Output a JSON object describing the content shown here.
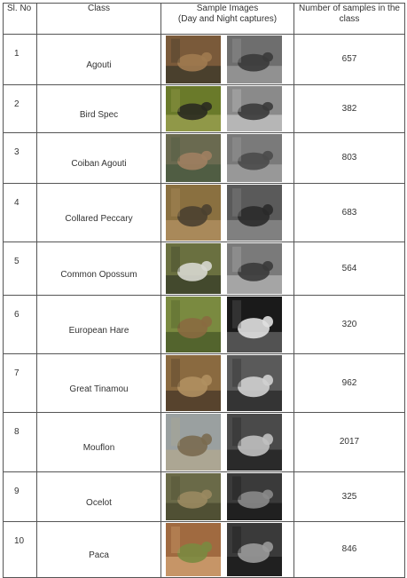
{
  "header": {
    "no": "Sl. No",
    "class": "Class",
    "images_line1": "Sample Images",
    "images_line2": "(Day and Night captures)",
    "count": "Number of samples in the class"
  },
  "rows": [
    {
      "no": "1",
      "class": "Agouti",
      "count": "657",
      "day_icon": "agouti-day-photo",
      "night_icon": "agouti-night-photo",
      "day_colors": [
        "#7a5a3a",
        "#a07a50",
        "#3e3a2a"
      ],
      "night_colors": [
        "#6e6e6e",
        "#3a3a3a",
        "#9a9a9a"
      ]
    },
    {
      "no": "2",
      "class": "Bird Spec",
      "count": "382",
      "day_icon": "bird-day-photo",
      "night_icon": "bird-night-photo",
      "day_colors": [
        "#6a7a2a",
        "#2a2a20",
        "#9aa050"
      ],
      "night_colors": [
        "#8a8a8a",
        "#3a3a3a",
        "#c0c0c0"
      ]
    },
    {
      "no": "3",
      "class": "Coiban Agouti",
      "count": "803",
      "day_icon": "coiban-agouti-day-photo",
      "night_icon": "coiban-agouti-night-photo",
      "day_colors": [
        "#6a6a50",
        "#a08060",
        "#4a5a40"
      ],
      "night_colors": [
        "#7a7a7a",
        "#4a4a4a",
        "#a0a0a0"
      ]
    },
    {
      "no": "4",
      "class": "Collared Peccary",
      "count": "683",
      "day_icon": "collared-peccary-day-photo",
      "night_icon": "collared-peccary-night-photo",
      "day_colors": [
        "#8a7040",
        "#4a4030",
        "#b09060"
      ],
      "night_colors": [
        "#5a5a5a",
        "#2a2a2a",
        "#8a8a8a"
      ]
    },
    {
      "no": "5",
      "class": "Common Opossum",
      "count": "564",
      "day_icon": "opossum-day-photo",
      "night_icon": "opossum-night-photo",
      "day_colors": [
        "#6a7040",
        "#d8d8d0",
        "#3a4028"
      ],
      "night_colors": [
        "#7a7a7a",
        "#3a3a3a",
        "#b0b0b0"
      ]
    },
    {
      "no": "6",
      "class": "European Hare",
      "count": "320",
      "day_icon": "hare-day-photo",
      "night_icon": "hare-night-photo",
      "day_colors": [
        "#7a8a40",
        "#8a6a40",
        "#4a5a28"
      ],
      "night_colors": [
        "#1a1a1a",
        "#e0e0e0",
        "#606060"
      ]
    },
    {
      "no": "7",
      "class": "Great Tinamou",
      "count": "962",
      "day_icon": "tinamou-day-photo",
      "night_icon": "tinamou-night-photo",
      "day_colors": [
        "#8a6a40",
        "#b09060",
        "#4a3a28"
      ],
      "night_colors": [
        "#5a5a5a",
        "#d0d0d0",
        "#2a2a2a"
      ]
    },
    {
      "no": "8",
      "class": "Mouflon",
      "count": "2017",
      "day_icon": "mouflon-day-photo",
      "night_icon": "mouflon-night-photo",
      "day_colors": [
        "#9aa0a0",
        "#7a6a50",
        "#b0a890"
      ],
      "night_colors": [
        "#4a4a4a",
        "#c0c0c0",
        "#222222"
      ]
    },
    {
      "no": "9",
      "class": "Ocelot",
      "count": "325",
      "day_icon": "ocelot-day-photo",
      "night_icon": "ocelot-night-photo",
      "day_colors": [
        "#6a6a48",
        "#9a8a60",
        "#4a4a30"
      ],
      "night_colors": [
        "#3a3a3a",
        "#8a8a8a",
        "#1a1a1a"
      ]
    },
    {
      "no": "10",
      "class": "Paca",
      "count": "846",
      "day_icon": "paca-day-photo",
      "night_icon": "paca-night-photo",
      "day_colors": [
        "#a06a40",
        "#7a8a40",
        "#d0a070"
      ],
      "night_colors": [
        "#3a3a3a",
        "#9a9a9a",
        "#1a1a1a"
      ]
    }
  ]
}
